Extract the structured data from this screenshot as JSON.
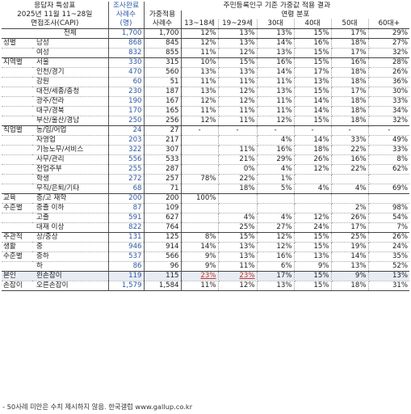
{
  "header": {
    "title": "응답자 특성표",
    "period": "2025년 11월 11~28일",
    "method": "면접조사(CAPI)",
    "completed_label": "조사완료",
    "cases_label": "사례수",
    "unit_label": "(명)",
    "results_title": "주민등록인구 기준 가중값 적용 결과",
    "weighted_label": "가중적용",
    "weighted_cases": "사례수",
    "age_dist_label": "연령 분포",
    "age_cols": [
      "13~18세",
      "19~29세",
      "30대",
      "40대",
      "50대",
      "60대+"
    ]
  },
  "total": {
    "label": "전체",
    "n": "1,700",
    "w": "1,700",
    "v": [
      "12%",
      "13%",
      "13%",
      "15%",
      "17%",
      "29%"
    ]
  },
  "groups": [
    {
      "name": [
        "성별"
      ],
      "rows": [
        {
          "label": "남성",
          "n": "868",
          "w": "845",
          "v": [
            "12%",
            "13%",
            "14%",
            "16%",
            "18%",
            "27%"
          ]
        },
        {
          "label": "여성",
          "n": "832",
          "w": "855",
          "v": [
            "11%",
            "12%",
            "13%",
            "15%",
            "17%",
            "32%"
          ]
        }
      ]
    },
    {
      "name": [
        "지역별"
      ],
      "rows": [
        {
          "label": "서울",
          "n": "330",
          "w": "315",
          "v": [
            "10%",
            "15%",
            "16%",
            "15%",
            "16%",
            "28%"
          ]
        },
        {
          "label": "인천/경기",
          "n": "470",
          "w": "560",
          "v": [
            "13%",
            "13%",
            "14%",
            "17%",
            "18%",
            "26%"
          ]
        },
        {
          "label": "강원",
          "n": "60",
          "w": "51",
          "v": [
            "11%",
            "11%",
            "11%",
            "13%",
            "18%",
            "36%"
          ]
        },
        {
          "label": "대전/세종/충청",
          "n": "230",
          "w": "187",
          "v": [
            "13%",
            "12%",
            "13%",
            "15%",
            "17%",
            "30%"
          ]
        },
        {
          "label": "광주/전라",
          "n": "190",
          "w": "167",
          "v": [
            "12%",
            "12%",
            "11%",
            "14%",
            "18%",
            "33%"
          ]
        },
        {
          "label": "대구/경북",
          "n": "170",
          "w": "165",
          "v": [
            "11%",
            "11%",
            "11%",
            "14%",
            "18%",
            "34%"
          ]
        },
        {
          "label": "부산/울산/경남",
          "n": "250",
          "w": "256",
          "v": [
            "12%",
            "11%",
            "12%",
            "15%",
            "18%",
            "32%"
          ]
        }
      ]
    },
    {
      "name": [
        "직업별"
      ],
      "rows": [
        {
          "label": "농/임/어업",
          "n": "24",
          "w": "27",
          "v": [
            "-",
            "-",
            "-",
            "-",
            "-",
            "-"
          ]
        },
        {
          "label": "자영업",
          "n": "203",
          "w": "217",
          "v": [
            "",
            "",
            "4%",
            "14%",
            "33%",
            "49%"
          ]
        },
        {
          "label": "기능노무/서비스",
          "n": "322",
          "w": "307",
          "v": [
            "",
            "11%",
            "16%",
            "18%",
            "22%",
            "33%"
          ]
        },
        {
          "label": "사무/관리",
          "n": "556",
          "w": "533",
          "v": [
            "",
            "21%",
            "29%",
            "26%",
            "16%",
            "8%"
          ]
        },
        {
          "label": "전업주부",
          "n": "255",
          "w": "287",
          "v": [
            "",
            "0%",
            "4%",
            "12%",
            "22%",
            "62%"
          ]
        },
        {
          "label": "학생",
          "n": "272",
          "w": "257",
          "v": [
            "78%",
            "22%",
            "1%",
            "",
            "",
            ""
          ]
        },
        {
          "label": "무직/은퇴/기타",
          "n": "68",
          "w": "71",
          "v": [
            "",
            "18%",
            "5%",
            "4%",
            "4%",
            "69%"
          ]
        }
      ]
    },
    {
      "name": [
        "교육",
        "수준별"
      ],
      "rows": [
        {
          "label": "중/고 재학",
          "n": "200",
          "w": "200",
          "v": [
            "100%",
            "",
            "",
            "",
            "",
            ""
          ]
        },
        {
          "label": "중졸 이하",
          "n": "87",
          "w": "109",
          "v": [
            "",
            "",
            "",
            "",
            "2%",
            "98%"
          ]
        },
        {
          "label": "고졸",
          "n": "591",
          "w": "627",
          "v": [
            "",
            "4%",
            "4%",
            "12%",
            "26%",
            "54%"
          ]
        },
        {
          "label": "대재 이상",
          "n": "822",
          "w": "764",
          "v": [
            "",
            "25%",
            "27%",
            "24%",
            "17%",
            "7%"
          ]
        }
      ]
    },
    {
      "name": [
        "주관적",
        "생활",
        "수준별"
      ],
      "rows": [
        {
          "label": "상/중상",
          "n": "131",
          "w": "125",
          "v": [
            "8%",
            "15%",
            "12%",
            "15%",
            "25%",
            "26%"
          ]
        },
        {
          "label": "중",
          "n": "946",
          "w": "914",
          "v": [
            "14%",
            "13%",
            "12%",
            "15%",
            "19%",
            "24%"
          ]
        },
        {
          "label": "중하",
          "n": "537",
          "w": "566",
          "v": [
            "9%",
            "13%",
            "16%",
            "13%",
            "14%",
            "35%"
          ]
        },
        {
          "label": "하",
          "n": "86",
          "w": "96",
          "v": [
            "9%",
            "11%",
            "6%",
            "9%",
            "13%",
            "52%"
          ]
        }
      ]
    },
    {
      "name": [
        "본인",
        "손잡이"
      ],
      "rows": [
        {
          "label": "왼손잡이",
          "n": "119",
          "w": "115",
          "v": [
            "23%",
            "23%",
            "17%",
            "15%",
            "9%",
            "13%"
          ],
          "highlight": true
        },
        {
          "label": "오른손잡이",
          "n": "1,579",
          "w": "1,584",
          "v": [
            "11%",
            "12%",
            "13%",
            "15%",
            "18%",
            "31%"
          ]
        }
      ]
    }
  ],
  "footnote": "- 50사례 미만은 수치 제시하지 않음. 한국갤럽 www.gallup.co.kr"
}
